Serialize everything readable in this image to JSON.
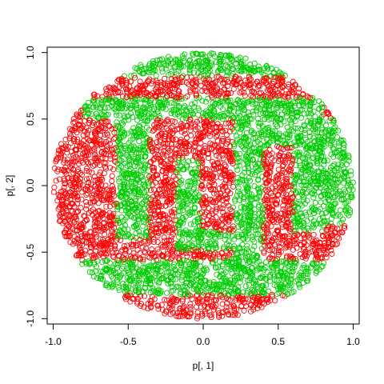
{
  "chart_data": {
    "type": "scatter",
    "xlabel": "p[, 1]",
    "ylabel": "p[, 2]",
    "xlim": [
      -1.04,
      1.04
    ],
    "ylim": [
      -1.04,
      1.04
    ],
    "x_ticks": [
      -1.0,
      -0.5,
      0.0,
      0.5,
      1.0
    ],
    "x_tick_labels": [
      "-1.0",
      "-0.5",
      "0.0",
      "0.5",
      "1.0"
    ],
    "y_ticks": [
      -1.0,
      -0.5,
      0.0,
      0.5,
      1.0
    ],
    "y_tick_labels": [
      "-1.0",
      "-0.5",
      "0.0",
      "0.5",
      "1.0"
    ],
    "grid": false,
    "marker": "open-circle",
    "domain": "unit-disk",
    "series": [
      {
        "color": "#00CD00",
        "regions": [
          {
            "shape": "disk-segment",
            "y_min": 0.82
          },
          {
            "shape": "rect",
            "x": [
              -0.8,
              0.8
            ],
            "y": [
              0.5,
              0.66
            ]
          },
          {
            "shape": "rect",
            "x": [
              -0.58,
              -0.36
            ],
            "y": [
              -0.4,
              0.5
            ]
          },
          {
            "shape": "rect",
            "x": [
              -0.18,
              -0.02
            ],
            "y": [
              -0.48,
              0.2
            ]
          },
          {
            "shape": "rect",
            "x": [
              -0.02,
              0.2
            ],
            "y": [
              -0.48,
              -0.34
            ]
          },
          {
            "shape": "rect",
            "x": [
              0.2,
              0.4
            ],
            "y": [
              -0.56,
              0.5
            ]
          },
          {
            "shape": "rect",
            "x": [
              0.4,
              0.8
            ],
            "y": [
              0.3,
              0.5
            ]
          },
          {
            "shape": "rect",
            "x": [
              0.6,
              0.8
            ],
            "y": [
              -0.36,
              0.3
            ]
          },
          {
            "shape": "rect",
            "x": [
              0.8,
              1.0
            ],
            "y": [
              -0.3,
              0.5
            ]
          },
          {
            "shape": "rect",
            "x": [
              -1.0,
              1.0
            ],
            "y": [
              -0.82,
              -0.56
            ]
          }
        ]
      },
      {
        "color": "#FF0000",
        "regions": [
          {
            "shape": "rest-of-disk"
          }
        ]
      }
    ]
  }
}
